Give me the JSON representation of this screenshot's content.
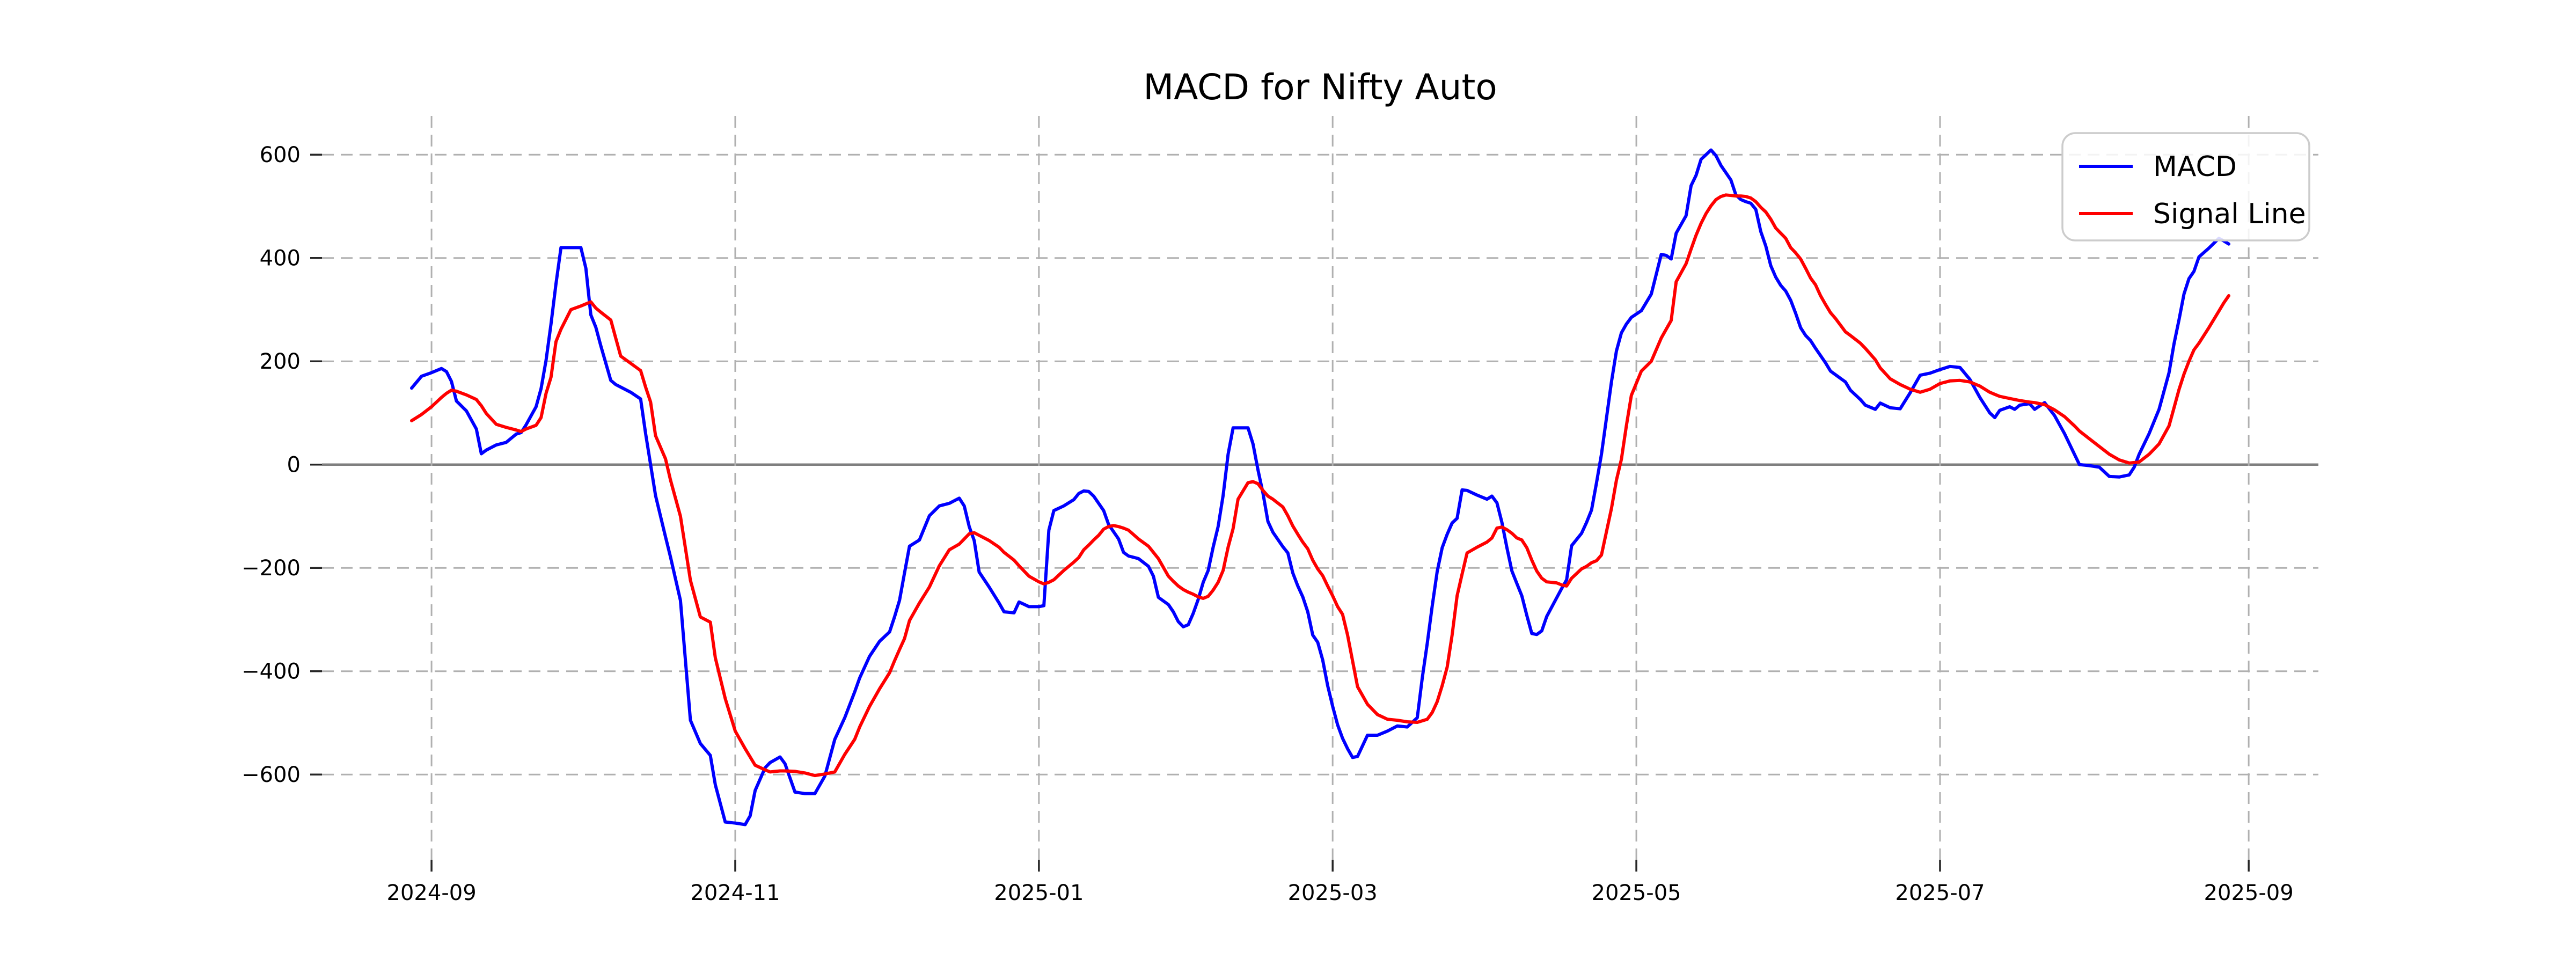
{
  "chart_data": {
    "type": "line",
    "title": "MACD for Nifty Auto",
    "xlabel": "",
    "ylabel": "",
    "grid": "dashed",
    "zero_line": true,
    "legend_position": "upper right",
    "colors": {
      "grid": "#b0b0b0",
      "zero_line": "#7f7f7f",
      "tick": "#262626",
      "legend_border": "#cccccc"
    },
    "ylim": [
      -765,
      675
    ],
    "x_domain": [
      "2024-08-10",
      "2025-09-15"
    ],
    "y_ticks": [
      600,
      400,
      200,
      0,
      -200,
      -400,
      -600
    ],
    "x_ticks": [
      {
        "label": "2024-09",
        "date": "2024-09-01"
      },
      {
        "label": "2024-11",
        "date": "2024-11-01"
      },
      {
        "label": "2025-01",
        "date": "2025-01-01"
      },
      {
        "label": "2025-03",
        "date": "2025-03-01"
      },
      {
        "label": "2025-05",
        "date": "2025-05-01"
      },
      {
        "label": "2025-07",
        "date": "2025-07-01"
      },
      {
        "label": "2025-09",
        "date": "2025-09-01"
      }
    ],
    "dates": [
      "2024-08-28",
      "2024-08-30",
      "2024-09-01",
      "2024-09-03",
      "2024-09-04",
      "2024-09-05",
      "2024-09-06",
      "2024-09-08",
      "2024-09-10",
      "2024-09-11",
      "2024-09-12",
      "2024-09-14",
      "2024-09-16",
      "2024-09-18",
      "2024-09-19",
      "2024-09-20",
      "2024-09-22",
      "2024-09-23",
      "2024-09-24",
      "2024-09-25",
      "2024-09-26",
      "2024-09-27",
      "2024-09-29",
      "2024-10-01",
      "2024-10-02",
      "2024-10-03",
      "2024-10-04",
      "2024-10-05",
      "2024-10-07",
      "2024-10-08",
      "2024-10-09",
      "2024-10-11",
      "2024-10-13",
      "2024-10-14",
      "2024-10-15",
      "2024-10-16",
      "2024-10-18",
      "2024-10-19",
      "2024-10-21",
      "2024-10-23",
      "2024-10-25",
      "2024-10-27",
      "2024-10-28",
      "2024-10-30",
      "2024-11-01",
      "2024-11-03",
      "2024-11-04",
      "2024-11-05",
      "2024-11-07",
      "2024-11-08",
      "2024-11-10",
      "2024-11-11",
      "2024-11-13",
      "2024-11-15",
      "2024-11-17",
      "2024-11-19",
      "2024-11-21",
      "2024-11-23",
      "2024-11-25",
      "2024-11-26",
      "2024-11-28",
      "2024-11-30",
      "2024-12-02",
      "2024-12-03",
      "2024-12-04",
      "2024-12-05",
      "2024-12-06",
      "2024-12-08",
      "2024-12-10",
      "2024-12-12",
      "2024-12-14",
      "2024-12-16",
      "2024-12-17",
      "2024-12-18",
      "2024-12-19",
      "2024-12-20",
      "2024-12-22",
      "2024-12-24",
      "2024-12-25",
      "2024-12-27",
      "2024-12-28",
      "2024-12-30",
      "2025-01-01",
      "2025-01-02",
      "2025-01-03",
      "2025-01-04",
      "2025-01-06",
      "2025-01-08",
      "2025-01-09",
      "2025-01-10",
      "2025-01-11",
      "2025-01-12",
      "2025-01-13",
      "2025-01-14",
      "2025-01-15",
      "2025-01-16",
      "2025-01-17",
      "2025-01-18",
      "2025-01-19",
      "2025-01-21",
      "2025-01-23",
      "2025-01-24",
      "2025-01-25",
      "2025-01-27",
      "2025-01-28",
      "2025-01-29",
      "2025-01-30",
      "2025-01-31",
      "2025-02-01",
      "2025-02-02",
      "2025-02-03",
      "2025-02-04",
      "2025-02-05",
      "2025-02-06",
      "2025-02-07",
      "2025-02-08",
      "2025-02-09",
      "2025-02-10",
      "2025-02-12",
      "2025-02-13",
      "2025-02-14",
      "2025-02-15",
      "2025-02-16",
      "2025-02-17",
      "2025-02-19",
      "2025-02-20",
      "2025-02-21",
      "2025-02-22",
      "2025-02-23",
      "2025-02-24",
      "2025-02-25",
      "2025-02-26",
      "2025-02-27",
      "2025-02-28",
      "2025-03-01",
      "2025-03-02",
      "2025-03-03",
      "2025-03-04",
      "2025-03-05",
      "2025-03-06",
      "2025-03-08",
      "2025-03-10",
      "2025-03-12",
      "2025-03-14",
      "2025-03-16",
      "2025-03-18",
      "2025-03-19",
      "2025-03-20",
      "2025-03-21",
      "2025-03-22",
      "2025-03-23",
      "2025-03-24",
      "2025-03-25",
      "2025-03-26",
      "2025-03-27",
      "2025-03-28",
      "2025-03-30",
      "2025-04-01",
      "2025-04-02",
      "2025-04-03",
      "2025-04-04",
      "2025-04-05",
      "2025-04-06",
      "2025-04-07",
      "2025-04-08",
      "2025-04-09",
      "2025-04-10",
      "2025-04-11",
      "2025-04-12",
      "2025-04-13",
      "2025-04-15",
      "2025-04-16",
      "2025-04-17",
      "2025-04-18",
      "2025-04-20",
      "2025-04-21",
      "2025-04-22",
      "2025-04-23",
      "2025-04-24",
      "2025-04-25",
      "2025-04-26",
      "2025-04-27",
      "2025-04-28",
      "2025-04-29",
      "2025-04-30",
      "2025-05-02",
      "2025-05-04",
      "2025-05-06",
      "2025-05-07",
      "2025-05-08",
      "2025-05-09",
      "2025-05-11",
      "2025-05-12",
      "2025-05-13",
      "2025-05-14",
      "2025-05-15",
      "2025-05-16",
      "2025-05-17",
      "2025-05-18",
      "2025-05-19",
      "2025-05-20",
      "2025-05-21",
      "2025-05-22",
      "2025-05-23",
      "2025-05-24",
      "2025-05-25",
      "2025-05-26",
      "2025-05-27",
      "2025-05-28",
      "2025-05-29",
      "2025-05-30",
      "2025-05-31",
      "2025-06-01",
      "2025-06-02",
      "2025-06-03",
      "2025-06-04",
      "2025-06-05",
      "2025-06-06",
      "2025-06-07",
      "2025-06-08",
      "2025-06-09",
      "2025-06-10",
      "2025-06-12",
      "2025-06-13",
      "2025-06-15",
      "2025-06-16",
      "2025-06-18",
      "2025-06-19",
      "2025-06-21",
      "2025-06-23",
      "2025-06-25",
      "2025-06-27",
      "2025-06-29",
      "2025-07-01",
      "2025-07-03",
      "2025-07-05",
      "2025-07-07",
      "2025-07-09",
      "2025-07-11",
      "2025-07-12",
      "2025-07-13",
      "2025-07-15",
      "2025-07-16",
      "2025-07-17",
      "2025-07-19",
      "2025-07-20",
      "2025-07-22",
      "2025-07-24",
      "2025-07-26",
      "2025-07-28",
      "2025-07-29",
      "2025-07-31",
      "2025-08-02",
      "2025-08-04",
      "2025-08-06",
      "2025-08-08",
      "2025-08-09",
      "2025-08-10",
      "2025-08-12",
      "2025-08-14",
      "2025-08-16",
      "2025-08-17",
      "2025-08-18",
      "2025-08-19",
      "2025-08-20",
      "2025-08-21",
      "2025-08-22",
      "2025-08-24",
      "2025-08-26",
      "2025-08-27",
      "2025-08-28"
    ],
    "series": [
      {
        "name": "MACD",
        "color": "#0000ff",
        "values": [
          148,
          171,
          178,
          186,
          180,
          161,
          123,
          104,
          69,
          21,
          28,
          38,
          43,
          59,
          62,
          77,
          112,
          147,
          202,
          272,
          350,
          420,
          420,
          420,
          380,
          290,
          266,
          230,
          163,
          155,
          150,
          140,
          127,
          60,
          0,
          -60,
          -140,
          -179,
          -263,
          -495,
          -540,
          -563,
          -620,
          -692,
          -694,
          -697,
          -680,
          -631,
          -587,
          -577,
          -566,
          -579,
          -634,
          -637,
          -637,
          -603,
          -532,
          -490,
          -440,
          -413,
          -371,
          -342,
          -324,
          -295,
          -263,
          -210,
          -158,
          -146,
          -99,
          -80,
          -75,
          -65,
          -80,
          -120,
          -147,
          -208,
          -237,
          -268,
          -285,
          -287,
          -266,
          -275,
          -275,
          -273,
          -127,
          -89,
          -80,
          -68,
          -56,
          -51,
          -52,
          -61,
          -75,
          -89,
          -116,
          -130,
          -144,
          -170,
          -177,
          -182,
          -197,
          -216,
          -257,
          -271,
          -285,
          -304,
          -314,
          -310,
          -288,
          -261,
          -228,
          -205,
          -160,
          -120,
          -60,
          20,
          71,
          71,
          71,
          40,
          -10,
          -55,
          -110,
          -131,
          -159,
          -171,
          -210,
          -235,
          -256,
          -285,
          -330,
          -344,
          -378,
          -428,
          -468,
          -504,
          -530,
          -550,
          -567,
          -565,
          -524,
          -524,
          -516,
          -506,
          -508,
          -490,
          -413,
          -346,
          -274,
          -207,
          -161,
          -135,
          -113,
          -104,
          -49,
          -50,
          -59,
          -67,
          -61,
          -74,
          -112,
          -161,
          -206,
          -230,
          -254,
          -292,
          -327,
          -329,
          -322,
          -294,
          -258,
          -240,
          -223,
          -157,
          -133,
          -112,
          -88,
          -35,
          20,
          90,
          160,
          220,
          255,
          272,
          285,
          298,
          330,
          407,
          405,
          398,
          448,
          482,
          540,
          560,
          591,
          600,
          609,
          598,
          579,
          565,
          551,
          522,
          513,
          509,
          506,
          494,
          451,
          423,
          385,
          363,
          347,
          336,
          318,
          293,
          265,
          250,
          240,
          225,
          211,
          197,
          181,
          174,
          160,
          144,
          126,
          115,
          107,
          119,
          110,
          108,
          139,
          173,
          177,
          184,
          190,
          188,
          165,
          130,
          100,
          91,
          105,
          112,
          107,
          115,
          118,
          107,
          120,
          95,
          60,
          20,
          0,
          -2,
          -5,
          -23,
          -24,
          -20,
          -5,
          20,
          60,
          107,
          178,
          234,
          280,
          330,
          360,
          374,
          402,
          419,
          438,
          433,
          427
        ]
      },
      {
        "name": "Signal Line",
        "color": "#ff0000",
        "values": [
          85,
          97,
          112,
          130,
          138,
          144,
          142,
          135,
          126,
          114,
          99,
          78,
          72,
          67,
          64,
          69,
          76,
          91,
          138,
          169,
          238,
          262,
          300,
          307,
          311,
          315,
          303,
          295,
          280,
          245,
          210,
          196,
          182,
          150,
          121,
          56,
          11,
          -30,
          -100,
          -224,
          -295,
          -305,
          -374,
          -453,
          -516,
          -550,
          -566,
          -582,
          -591,
          -595,
          -593,
          -593,
          -594,
          -597,
          -602,
          -599,
          -595,
          -561,
          -532,
          -508,
          -468,
          -434,
          -403,
          -380,
          -358,
          -337,
          -302,
          -268,
          -237,
          -196,
          -165,
          -154,
          -144,
          -134,
          -132,
          -137,
          -147,
          -160,
          -170,
          -185,
          -196,
          -216,
          -227,
          -231,
          -228,
          -223,
          -205,
          -189,
          -180,
          -165,
          -156,
          -146,
          -137,
          -125,
          -120,
          -118,
          -120,
          -123,
          -127,
          -144,
          -158,
          -170,
          -182,
          -216,
          -226,
          -235,
          -242,
          -247,
          -251,
          -256,
          -259,
          -255,
          -243,
          -228,
          -205,
          -160,
          -124,
          -67,
          -35,
          -33,
          -37,
          -50,
          -61,
          -67,
          -82,
          -99,
          -119,
          -135,
          -150,
          -163,
          -185,
          -202,
          -215,
          -235,
          -254,
          -275,
          -290,
          -330,
          -380,
          -430,
          -464,
          -484,
          -493,
          -495,
          -498,
          -499,
          -496,
          -493,
          -480,
          -459,
          -428,
          -392,
          -330,
          -254,
          -212,
          -171,
          -160,
          -150,
          -142,
          -123,
          -121,
          -126,
          -133,
          -142,
          -146,
          -161,
          -185,
          -206,
          -220,
          -227,
          -229,
          -233,
          -235,
          -220,
          -202,
          -197,
          -190,
          -186,
          -175,
          -130,
          -85,
          -30,
          10,
          75,
          134,
          181,
          200,
          245,
          262,
          279,
          354,
          389,
          417,
          444,
          467,
          486,
          501,
          513,
          519,
          522,
          521,
          520,
          520,
          519,
          516,
          509,
          498,
          489,
          475,
          458,
          448,
          438,
          420,
          410,
          398,
          380,
          361,
          348,
          327,
          310,
          294,
          283,
          257,
          250,
          235,
          225,
          203,
          187,
          166,
          155,
          146,
          140,
          146,
          157,
          162,
          163,
          160,
          152,
          140,
          136,
          132,
          128,
          126,
          124,
          121,
          120,
          116,
          106,
          93,
          75,
          65,
          50,
          35,
          20,
          9,
          3,
          4,
          5,
          20,
          40,
          75,
          110,
          145,
          175,
          200,
          222,
          235,
          265,
          297,
          313,
          327
        ]
      }
    ]
  }
}
